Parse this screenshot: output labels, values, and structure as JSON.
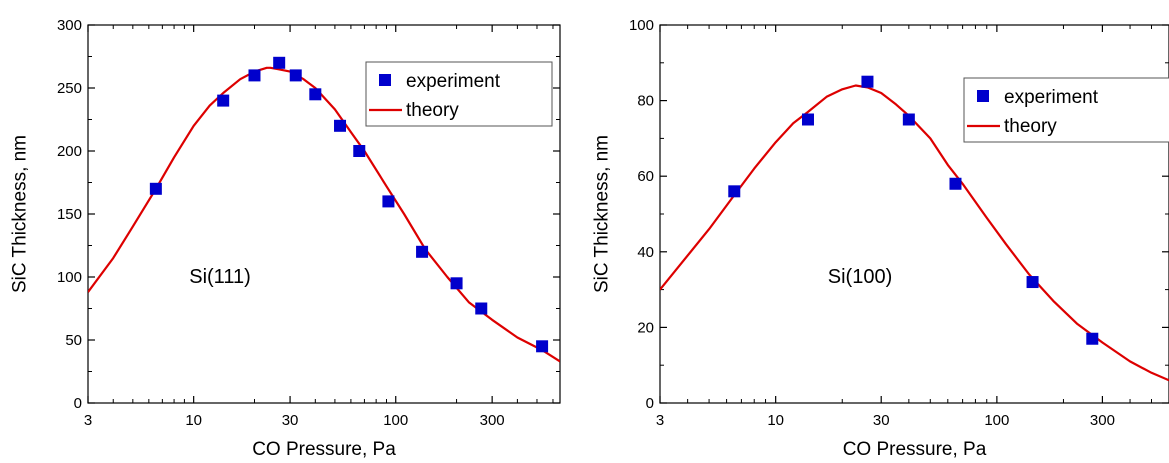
{
  "chart_data": [
    {
      "type": "scatter",
      "xlabel": "CO Pressure, Pa",
      "ylabel": "SiC Thickness, nm",
      "xscale": "log",
      "xlim": [
        3,
        650
      ],
      "ylim": [
        0,
        300
      ],
      "xticks": [
        3,
        10,
        30,
        100,
        300
      ],
      "yticks": [
        0,
        50,
        100,
        150,
        200,
        250,
        300
      ],
      "annotation": "Si(111)",
      "grid": false,
      "legend": {
        "position": "top-right",
        "entries": [
          "experiment",
          "theory"
        ]
      },
      "series": [
        {
          "name": "experiment",
          "kind": "markers",
          "color": "#0000cc",
          "x": [
            6.5,
            14,
            20,
            26.5,
            32,
            40,
            53,
            66,
            92,
            135,
            200,
            265,
            530
          ],
          "y": [
            170,
            240,
            260,
            270,
            260,
            245,
            220,
            200,
            160,
            120,
            95,
            75,
            45
          ]
        },
        {
          "name": "theory",
          "kind": "line",
          "color": "#dd0000",
          "x": [
            3,
            4,
            5,
            6.5,
            8,
            10,
            12,
            14,
            17,
            20,
            23,
            24,
            26,
            30,
            35,
            40,
            50,
            60,
            70,
            90,
            110,
            140,
            180,
            230,
            300,
            400,
            530,
            650
          ],
          "y": [
            88,
            115,
            140,
            170,
            195,
            220,
            236,
            246,
            257,
            263,
            266,
            266,
            265,
            263,
            257,
            250,
            233,
            215,
            200,
            172,
            150,
            122,
            100,
            80,
            66,
            52,
            42,
            33
          ]
        }
      ]
    },
    {
      "type": "scatter",
      "xlabel": "CO Pressure, Pa",
      "ylabel": "SiC Thickness, nm",
      "xscale": "log",
      "xlim": [
        3,
        600
      ],
      "ylim": [
        0,
        100
      ],
      "xticks": [
        3,
        10,
        30,
        100,
        300
      ],
      "yticks": [
        0,
        20,
        40,
        60,
        80,
        100
      ],
      "annotation": "Si(100)",
      "grid": false,
      "legend": {
        "position": "top-right",
        "entries": [
          "experiment",
          "theory"
        ]
      },
      "series": [
        {
          "name": "experiment",
          "kind": "markers",
          "color": "#0000cc",
          "x": [
            6.5,
            14,
            26,
            40,
            65,
            145,
            270
          ],
          "y": [
            56,
            75,
            85,
            75,
            58,
            32,
            17
          ]
        },
        {
          "name": "theory",
          "kind": "line",
          "color": "#dd0000",
          "x": [
            3,
            4,
            5,
            6.5,
            8,
            10,
            12,
            14,
            17,
            20,
            23,
            26,
            30,
            35,
            40,
            50,
            60,
            70,
            90,
            110,
            140,
            180,
            230,
            300,
            400,
            500,
            600
          ],
          "y": [
            30,
            39,
            46,
            55,
            62,
            69,
            74,
            77,
            81,
            83,
            84,
            83.5,
            82,
            79,
            76,
            70,
            63,
            58,
            49,
            42,
            34,
            27,
            21,
            16,
            11,
            8,
            6
          ]
        }
      ]
    }
  ]
}
